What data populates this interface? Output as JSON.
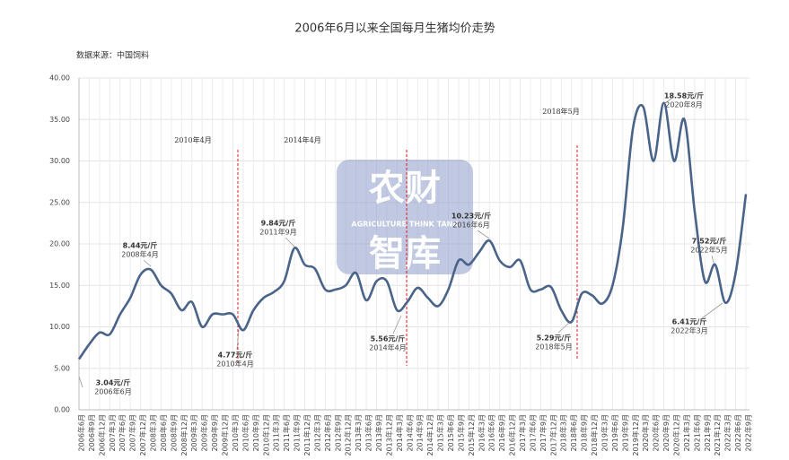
{
  "chart_data": {
    "type": "line",
    "title": "2006年6月以来全国每月生猪均价走势",
    "source": "数据来源：中国饲料",
    "watermark": [
      "农财",
      "AGRICULTURE THINK TANK",
      "智库"
    ],
    "categories": [
      "2006年6月",
      "2006年9月",
      "2006年12月",
      "2007年3月",
      "2007年6月",
      "2007年9月",
      "2007年12月",
      "2008年3月",
      "2008年6月",
      "2008年9月",
      "2008年12月",
      "2009年3月",
      "2009年6月",
      "2009年9月",
      "2009年12月",
      "2010年3月",
      "2010年6月",
      "2010年9月",
      "2010年12月",
      "2011年3月",
      "2011年6月",
      "2011年9月",
      "2011年12月",
      "2012年3月",
      "2012年6月",
      "2012年9月",
      "2012年12月",
      "2013年3月",
      "2013年6月",
      "2013年9月",
      "2013年12月",
      "2014年3月",
      "2014年6月",
      "2014年9月",
      "2014年12月",
      "2015年3月",
      "2015年6月",
      "2015年9月",
      "2015年12月",
      "2016年3月",
      "2016年6月",
      "2016年9月",
      "2016年12月",
      "2017年3月",
      "2017年6月",
      "2017年9月",
      "2017年12月",
      "2018年3月",
      "2018年6月",
      "2018年9月",
      "2018年12月",
      "2019年3月",
      "2019年6月",
      "2019年9月",
      "2019年12月",
      "2020年3月",
      "2020年6月",
      "2020年9月",
      "2020年12月",
      "2021年3月",
      "2021年6月",
      "2021年9月",
      "2021年12月",
      "2022年3月",
      "2022年6月",
      "2022年9月"
    ],
    "series": [
      {
        "color": "#4a6388",
        "values": [
          6.1,
          7.9,
          9.3,
          9.1,
          11.5,
          13.5,
          16.3,
          16.9,
          15.0,
          14.0,
          12.0,
          13.0,
          10.0,
          11.5,
          11.5,
          11.5,
          9.6,
          12.0,
          13.5,
          14.2,
          15.5,
          19.5,
          17.5,
          17.0,
          14.5,
          14.5,
          15.0,
          16.5,
          13.2,
          15.5,
          15.5,
          12.0,
          13.0,
          14.7,
          13.5,
          12.5,
          14.5,
          18.0,
          17.5,
          19.0,
          20.4,
          18.0,
          17.2,
          18.0,
          14.5,
          14.5,
          14.8,
          12.0,
          10.6,
          14.0,
          13.8,
          12.8,
          15.0,
          22.0,
          34.0,
          36.5,
          30.0,
          37.0,
          30.0,
          35.0,
          24.0,
          15.5,
          17.5,
          12.9,
          16.5,
          26.0
        ]
      }
    ],
    "ylim": [
      0,
      40
    ],
    "yticks": [
      {
        "value": 0,
        "label": "0.00"
      },
      {
        "value": 5,
        "label": "5.00"
      },
      {
        "value": 10,
        "label": "10.00"
      },
      {
        "value": 15,
        "label": "15.00"
      },
      {
        "value": 20,
        "label": "20.00"
      },
      {
        "value": 25,
        "label": "25.00"
      },
      {
        "value": 30,
        "label": "30.00"
      },
      {
        "value": 35,
        "label": "35.00"
      },
      {
        "value": 40,
        "label": "40.00"
      }
    ],
    "grid": true,
    "annotations": [
      {
        "value": "3.04元/斤",
        "date": "2006年6月"
      },
      {
        "value": "8.44元/斤",
        "date": "2008年4月"
      },
      {
        "value": "4.77元/斤",
        "date": "2010年4月"
      },
      {
        "value": "9.84元/斤",
        "date": "2011年9月"
      },
      {
        "value": "5.56元/斤",
        "date": "2014年4月"
      },
      {
        "value": "10.23元/斤",
        "date": "2016年6月"
      },
      {
        "value": "5.29元/斤",
        "date": "2018年5月"
      },
      {
        "value": "18.58元/斤",
        "date": "2020年8月"
      },
      {
        "value": "7.52元/斤",
        "date": "2022年5月"
      },
      {
        "value": "6.41元/斤",
        "date": "2022年3月"
      }
    ],
    "markers": [
      "2010年4月",
      "2014年4月",
      "2018年5月"
    ],
    "marker_color": "#e02020"
  }
}
